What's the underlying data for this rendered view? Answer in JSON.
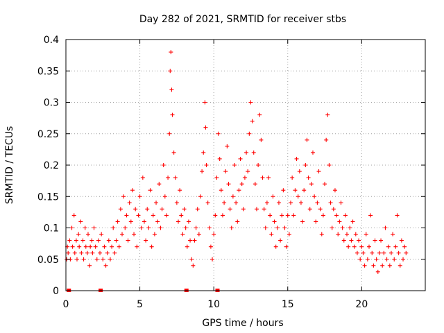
{
  "chart_data": {
    "type": "scatter",
    "title": "Day 282 of 2021, SRMTID for receiver stbs",
    "xlabel": "GPS time / hours",
    "ylabel": "SRMTID / TECUs",
    "xlim": [
      0,
      24.3
    ],
    "ylim": [
      0,
      0.4
    ],
    "x_ticks": [
      0,
      5,
      10,
      15,
      20
    ],
    "x_tick_labels": [
      "0",
      "5",
      "10",
      "15",
      "20"
    ],
    "y_ticks": [
      0,
      0.05,
      0.1,
      0.15,
      0.2,
      0.25,
      0.3,
      0.35,
      0.4
    ],
    "y_tick_labels": [
      "0",
      "0.05",
      "0.1",
      "0.15",
      "0.2",
      "0.25",
      "0.3",
      "0.35",
      "0.4"
    ],
    "grid": true,
    "series": [
      {
        "name": "SRMTID",
        "marker": "plus",
        "color": "#ff0000",
        "points": [
          [
            0.05,
            0.05
          ],
          [
            0.1,
            0.07
          ],
          [
            0.15,
            0.06
          ],
          [
            0.25,
            0.08
          ],
          [
            0.3,
            0.05
          ],
          [
            0.4,
            0.1
          ],
          [
            0.45,
            0.07
          ],
          [
            0.55,
            0.12
          ],
          [
            0.6,
            0.06
          ],
          [
            0.7,
            0.08
          ],
          [
            0.75,
            0.05
          ],
          [
            0.85,
            0.09
          ],
          [
            0.9,
            0.07
          ],
          [
            1.0,
            0.11
          ],
          [
            1.05,
            0.06
          ],
          [
            1.15,
            0.08
          ],
          [
            1.2,
            0.05
          ],
          [
            1.3,
            0.1
          ],
          [
            1.35,
            0.07
          ],
          [
            1.45,
            0.06
          ],
          [
            1.5,
            0.09
          ],
          [
            1.6,
            0.04
          ],
          [
            1.65,
            0.07
          ],
          [
            1.75,
            0.08
          ],
          [
            1.8,
            0.06
          ],
          [
            1.9,
            0.1
          ],
          [
            2.0,
            0.07
          ],
          [
            2.1,
            0.05
          ],
          [
            2.2,
            0.08
          ],
          [
            2.3,
            0.06
          ],
          [
            2.4,
            0.09
          ],
          [
            2.5,
            0.05
          ],
          [
            2.6,
            0.07
          ],
          [
            2.7,
            0.04
          ],
          [
            2.8,
            0.06
          ],
          [
            2.9,
            0.08
          ],
          [
            3.0,
            0.05
          ],
          [
            3.1,
            0.07
          ],
          [
            3.2,
            0.1
          ],
          [
            3.3,
            0.06
          ],
          [
            3.4,
            0.08
          ],
          [
            3.5,
            0.11
          ],
          [
            3.6,
            0.07
          ],
          [
            3.7,
            0.13
          ],
          [
            3.8,
            0.09
          ],
          [
            3.9,
            0.15
          ],
          [
            4.0,
            0.1
          ],
          [
            4.1,
            0.12
          ],
          [
            4.2,
            0.08
          ],
          [
            4.3,
            0.14
          ],
          [
            4.4,
            0.11
          ],
          [
            4.5,
            0.16
          ],
          [
            4.6,
            0.09
          ],
          [
            4.7,
            0.13
          ],
          [
            4.8,
            0.07
          ],
          [
            4.9,
            0.12
          ],
          [
            5.0,
            0.15
          ],
          [
            5.1,
            0.1
          ],
          [
            5.2,
            0.18
          ],
          [
            5.3,
            0.11
          ],
          [
            5.4,
            0.08
          ],
          [
            5.5,
            0.13
          ],
          [
            5.6,
            0.1
          ],
          [
            5.7,
            0.16
          ],
          [
            5.8,
            0.07
          ],
          [
            5.9,
            0.12
          ],
          [
            6.0,
            0.09
          ],
          [
            6.1,
            0.14
          ],
          [
            6.2,
            0.11
          ],
          [
            6.3,
            0.17
          ],
          [
            6.4,
            0.1
          ],
          [
            6.5,
            0.13
          ],
          [
            6.6,
            0.2
          ],
          [
            6.7,
            0.15
          ],
          [
            6.8,
            0.12
          ],
          [
            6.9,
            0.18
          ],
          [
            7.0,
            0.25
          ],
          [
            7.05,
            0.35
          ],
          [
            7.1,
            0.38
          ],
          [
            7.15,
            0.32
          ],
          [
            7.2,
            0.28
          ],
          [
            7.3,
            0.22
          ],
          [
            7.4,
            0.18
          ],
          [
            7.5,
            0.14
          ],
          [
            7.6,
            0.11
          ],
          [
            7.7,
            0.16
          ],
          [
            7.8,
            0.12
          ],
          [
            7.9,
            0.09
          ],
          [
            8.0,
            0.13
          ],
          [
            8.1,
            0.1
          ],
          [
            8.2,
            0.07
          ],
          [
            8.3,
            0.11
          ],
          [
            8.4,
            0.08
          ],
          [
            8.5,
            0.05
          ],
          [
            8.6,
            0.04
          ],
          [
            8.7,
            0.08
          ],
          [
            8.8,
            0.1
          ],
          [
            8.9,
            0.13
          ],
          [
            9.0,
            0.09
          ],
          [
            9.1,
            0.15
          ],
          [
            9.2,
            0.19
          ],
          [
            9.3,
            0.22
          ],
          [
            9.4,
            0.3
          ],
          [
            9.45,
            0.26
          ],
          [
            9.5,
            0.2
          ],
          [
            9.6,
            0.14
          ],
          [
            9.7,
            0.1
          ],
          [
            9.8,
            0.07
          ],
          [
            9.9,
            0.05
          ],
          [
            10.0,
            0.09
          ],
          [
            10.1,
            0.12
          ],
          [
            10.2,
            0.18
          ],
          [
            10.3,
            0.25
          ],
          [
            10.4,
            0.21
          ],
          [
            10.5,
            0.16
          ],
          [
            10.6,
            0.12
          ],
          [
            10.7,
            0.14
          ],
          [
            10.8,
            0.19
          ],
          [
            10.9,
            0.23
          ],
          [
            11.0,
            0.17
          ],
          [
            11.1,
            0.13
          ],
          [
            11.2,
            0.1
          ],
          [
            11.3,
            0.15
          ],
          [
            11.4,
            0.2
          ],
          [
            11.5,
            0.14
          ],
          [
            11.6,
            0.11
          ],
          [
            11.7,
            0.16
          ],
          [
            11.8,
            0.21
          ],
          [
            11.9,
            0.17
          ],
          [
            12.0,
            0.13
          ],
          [
            12.1,
            0.18
          ],
          [
            12.2,
            0.22
          ],
          [
            12.3,
            0.19
          ],
          [
            12.4,
            0.25
          ],
          [
            12.5,
            0.3
          ],
          [
            12.6,
            0.27
          ],
          [
            12.7,
            0.22
          ],
          [
            12.8,
            0.17
          ],
          [
            12.9,
            0.13
          ],
          [
            13.0,
            0.2
          ],
          [
            13.1,
            0.28
          ],
          [
            13.2,
            0.24
          ],
          [
            13.3,
            0.18
          ],
          [
            13.4,
            0.13
          ],
          [
            13.5,
            0.1
          ],
          [
            13.6,
            0.14
          ],
          [
            13.7,
            0.18
          ],
          [
            13.8,
            0.12
          ],
          [
            13.9,
            0.09
          ],
          [
            14.0,
            0.15
          ],
          [
            14.1,
            0.11
          ],
          [
            14.2,
            0.07
          ],
          [
            14.3,
            0.1
          ],
          [
            14.4,
            0.14
          ],
          [
            14.5,
            0.08
          ],
          [
            14.6,
            0.12
          ],
          [
            14.7,
            0.16
          ],
          [
            14.8,
            0.1
          ],
          [
            14.9,
            0.07
          ],
          [
            15.0,
            0.12
          ],
          [
            15.1,
            0.09
          ],
          [
            15.2,
            0.14
          ],
          [
            15.3,
            0.18
          ],
          [
            15.4,
            0.12
          ],
          [
            15.5,
            0.16
          ],
          [
            15.6,
            0.21
          ],
          [
            15.7,
            0.15
          ],
          [
            15.8,
            0.19
          ],
          [
            15.9,
            0.14
          ],
          [
            16.0,
            0.11
          ],
          [
            16.1,
            0.16
          ],
          [
            16.2,
            0.2
          ],
          [
            16.3,
            0.24
          ],
          [
            16.4,
            0.18
          ],
          [
            16.5,
            0.13
          ],
          [
            16.6,
            0.17
          ],
          [
            16.7,
            0.22
          ],
          [
            16.8,
            0.15
          ],
          [
            16.9,
            0.11
          ],
          [
            17.0,
            0.14
          ],
          [
            17.1,
            0.19
          ],
          [
            17.2,
            0.13
          ],
          [
            17.3,
            0.09
          ],
          [
            17.4,
            0.12
          ],
          [
            17.5,
            0.17
          ],
          [
            17.6,
            0.24
          ],
          [
            17.7,
            0.28
          ],
          [
            17.8,
            0.2
          ],
          [
            17.9,
            0.14
          ],
          [
            18.0,
            0.1
          ],
          [
            18.1,
            0.13
          ],
          [
            18.2,
            0.16
          ],
          [
            18.3,
            0.12
          ],
          [
            18.4,
            0.09
          ],
          [
            18.5,
            0.11
          ],
          [
            18.6,
            0.14
          ],
          [
            18.7,
            0.1
          ],
          [
            18.8,
            0.08
          ],
          [
            18.9,
            0.12
          ],
          [
            19.0,
            0.09
          ],
          [
            19.1,
            0.07
          ],
          [
            19.2,
            0.1
          ],
          [
            19.3,
            0.08
          ],
          [
            19.4,
            0.11
          ],
          [
            19.5,
            0.07
          ],
          [
            19.6,
            0.09
          ],
          [
            19.7,
            0.06
          ],
          [
            19.8,
            0.08
          ],
          [
            19.9,
            0.05
          ],
          [
            20.0,
            0.07
          ],
          [
            20.1,
            0.06
          ],
          [
            20.2,
            0.04
          ],
          [
            20.3,
            0.09
          ],
          [
            20.4,
            0.05
          ],
          [
            20.5,
            0.07
          ],
          [
            20.6,
            0.12
          ],
          [
            20.7,
            0.06
          ],
          [
            20.8,
            0.04
          ],
          [
            20.9,
            0.08
          ],
          [
            21.0,
            0.05
          ],
          [
            21.1,
            0.03
          ],
          [
            21.2,
            0.06
          ],
          [
            21.3,
            0.08
          ],
          [
            21.4,
            0.04
          ],
          [
            21.5,
            0.06
          ],
          [
            21.6,
            0.1
          ],
          [
            21.7,
            0.05
          ],
          [
            21.8,
            0.07
          ],
          [
            21.9,
            0.04
          ],
          [
            22.0,
            0.06
          ],
          [
            22.1,
            0.09
          ],
          [
            22.2,
            0.05
          ],
          [
            22.3,
            0.07
          ],
          [
            22.4,
            0.12
          ],
          [
            22.5,
            0.06
          ],
          [
            22.6,
            0.04
          ],
          [
            22.7,
            0.08
          ],
          [
            22.8,
            0.05
          ],
          [
            22.9,
            0.07
          ],
          [
            23.0,
            0.06
          ]
        ]
      }
    ],
    "gap_markers_x": [
      0.2,
      2.35,
      8.15,
      10.25
    ]
  }
}
